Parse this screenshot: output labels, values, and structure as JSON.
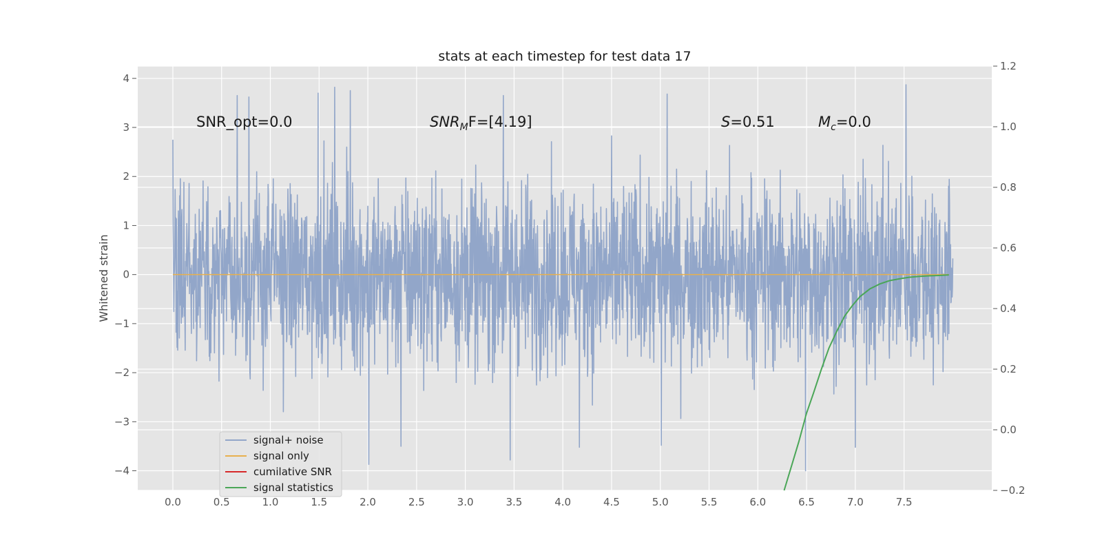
{
  "chart_data": {
    "type": "line",
    "title": "stats at each timestep for test data 17",
    "ylabel": "Whitened strain",
    "xlabel": "",
    "xlim": [
      -0.36,
      8.4
    ],
    "ylim": [
      -4.4,
      4.25
    ],
    "y2lim": [
      -0.2,
      1.2
    ],
    "x_ticks": [
      "0.0",
      "0.5",
      "1.0",
      "1.5",
      "2.0",
      "2.5",
      "3.0",
      "3.5",
      "4.0",
      "4.5",
      "5.0",
      "5.5",
      "6.0",
      "6.5",
      "7.0",
      "7.5"
    ],
    "y_ticks": [
      "4",
      "3",
      "2",
      "1",
      "0",
      "−1",
      "−2",
      "−3",
      "−4"
    ],
    "y2_ticks": [
      "1.2",
      "1.0",
      "0.8",
      "0.6",
      "0.4",
      "0.2",
      "0.0",
      "−0.2"
    ],
    "grid": true,
    "legend_placement": "lower-left",
    "annotations": {
      "snr_opt": "SNR_opt=0.0",
      "snr_mf_base": "SNR",
      "snr_mf_sub": "M",
      "snr_mf_rest": "F=[4.19]",
      "s_var": "S",
      "s_rest": "=0.51",
      "mc_var": "M",
      "mc_sub": "c",
      "mc_rest": "=0.0"
    },
    "series": [
      {
        "name": "signal+ noise",
        "color": "#92a6c9",
        "axis": "left",
        "x_range": [
          0,
          8.0
        ],
        "description": "whitened strain noise, approx zero mean, unit variance",
        "peak_envelope": {
          "max": 3.87,
          "min": -4.0
        },
        "sample_extremes": [
          {
            "x": 0.0,
            "y": 2.75
          },
          {
            "x": 0.66,
            "y": 3.65
          },
          {
            "x": 0.78,
            "y": 3.62
          },
          {
            "x": 1.49,
            "y": 3.7
          },
          {
            "x": 1.66,
            "y": 3.82
          },
          {
            "x": 1.82,
            "y": 3.75
          },
          {
            "x": 2.01,
            "y": -3.87
          },
          {
            "x": 2.34,
            "y": -3.5
          },
          {
            "x": 3.39,
            "y": 3.65
          },
          {
            "x": 3.46,
            "y": -3.78
          },
          {
            "x": 4.17,
            "y": -3.52
          },
          {
            "x": 5.07,
            "y": 3.68
          },
          {
            "x": 5.01,
            "y": -3.48
          },
          {
            "x": 6.49,
            "y": -4.0
          },
          {
            "x": 7.0,
            "y": -3.52
          },
          {
            "x": 7.52,
            "y": 3.87
          }
        ]
      },
      {
        "name": "signal only",
        "color": "#e8b04d",
        "axis": "left",
        "x": [
          0.0,
          7.96
        ],
        "y": [
          0.0,
          0.0
        ]
      },
      {
        "name": "cumilative SNR",
        "color": "#d62728",
        "axis": "right",
        "x": [],
        "y": []
      },
      {
        "name": "signal statistics",
        "color": "#4aa657",
        "axis": "right",
        "x": [
          6.27,
          6.35,
          6.42,
          6.5,
          6.57,
          6.65,
          6.73,
          6.81,
          6.89,
          6.97,
          7.05,
          7.15,
          7.25,
          7.35,
          7.45,
          7.55,
          7.65,
          7.75,
          7.85,
          7.96
        ],
        "y": [
          -0.2,
          -0.115,
          -0.04,
          0.055,
          0.12,
          0.198,
          0.27,
          0.325,
          0.375,
          0.41,
          0.44,
          0.465,
          0.481,
          0.492,
          0.498,
          0.503,
          0.506,
          0.508,
          0.509,
          0.511
        ]
      }
    ]
  }
}
